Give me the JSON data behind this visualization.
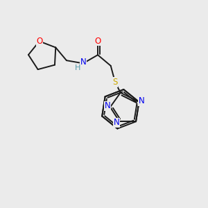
{
  "bg_color": "#ebebeb",
  "bond_color": "#1a1a1a",
  "atom_colors": {
    "O": "#ff0000",
    "N": "#0000ee",
    "S": "#ccaa00",
    "H": "#5599aa",
    "C": "#1a1a1a"
  },
  "figsize": [
    3.0,
    3.0
  ],
  "dpi": 100
}
